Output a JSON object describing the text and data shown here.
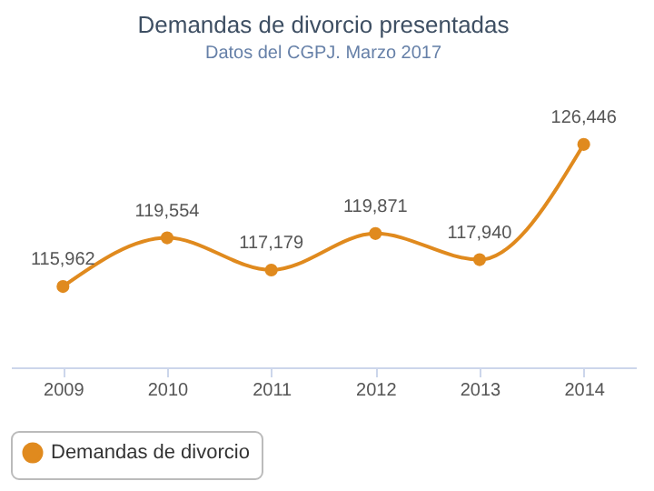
{
  "chart_data": {
    "type": "line",
    "title": "Demandas de divorcio presentadas",
    "subtitle": "Datos del CGPJ. Marzo 2017",
    "categories": [
      "2009",
      "2010",
      "2011",
      "2012",
      "2013",
      "2014"
    ],
    "series": [
      {
        "name": "Demandas de divorcio",
        "color": "#e08a1e",
        "values": [
          115962,
          119554,
          117179,
          119871,
          117940,
          126446
        ],
        "value_labels": [
          "115,962",
          "119,554",
          "117,179",
          "119,871",
          "117,940",
          "126,446"
        ]
      }
    ],
    "tick_labels": "x",
    "marker": "circle",
    "line_style": "solid",
    "legend": "bottom"
  }
}
